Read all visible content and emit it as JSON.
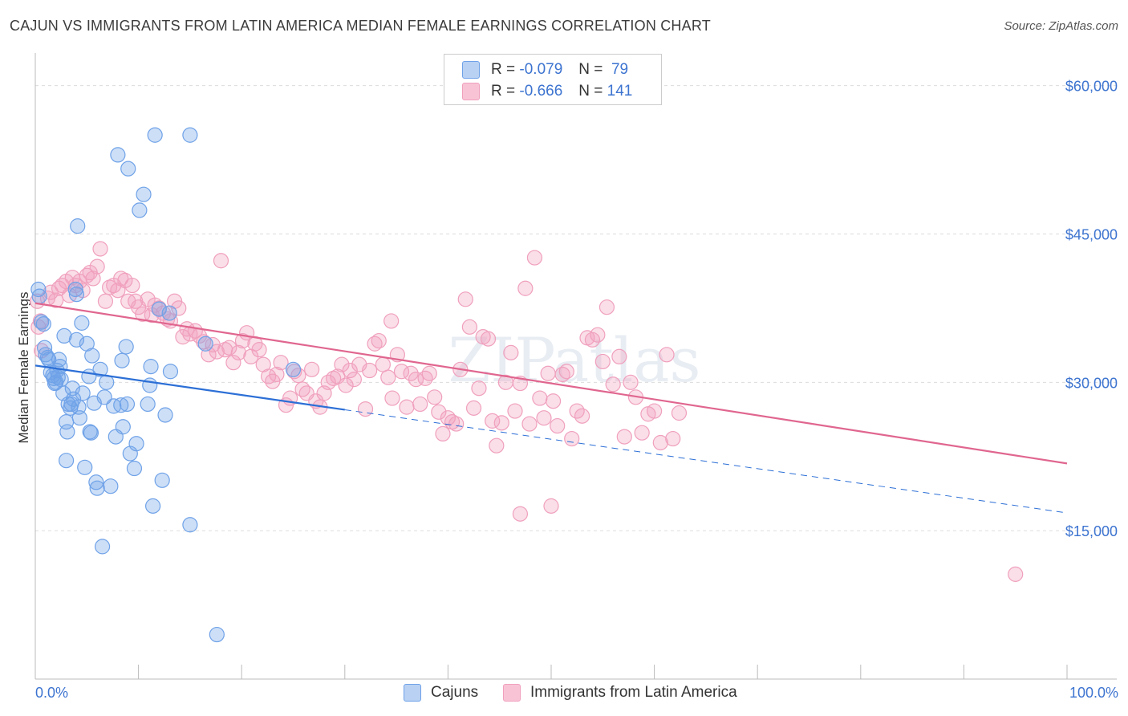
{
  "title": "CAJUN VS IMMIGRANTS FROM LATIN AMERICA MEDIAN FEMALE EARNINGS CORRELATION CHART",
  "source": "Source: ZipAtlas.com",
  "watermark": "ZIPatlas",
  "legend": {
    "rows": [
      {
        "r_label": "R =",
        "r_value": "-0.079",
        "n_label": "N =",
        "n_value": "79"
      },
      {
        "r_label": "R =",
        "r_value": "-0.666",
        "n_label": "N =",
        "n_value": "141"
      }
    ]
  },
  "bottom_legend": {
    "series0": "Cajuns",
    "series1": "Immigrants from Latin America"
  },
  "colors": {
    "blue": "#6fa2e8",
    "blue_line": "#2c6fd6",
    "pink": "#f0a0bd",
    "pink_line": "#e0668f",
    "axis_text": "#3d74d0"
  },
  "chart_data": {
    "type": "scatter",
    "ylabel": "Median Female Earnings",
    "xlim": [
      0,
      100
    ],
    "ylim": [
      0,
      62000
    ],
    "x_tick_labels": [
      "0.0%",
      "100.0%"
    ],
    "y_ticks": [
      15000,
      30000,
      45000,
      60000
    ],
    "y_tick_labels": [
      "$15,000",
      "$30,000",
      "$45,000",
      "$60,000"
    ],
    "grid": true,
    "series": [
      {
        "name": "Cajuns",
        "trend": {
          "x_start": 0,
          "y_start": 31700,
          "x_solid_end": 30,
          "x_end": 100,
          "y_end": 16800
        },
        "points": [
          [
            0.3,
            39400
          ],
          [
            0.4,
            38700
          ],
          [
            0.6,
            36100
          ],
          [
            0.8,
            35900
          ],
          [
            0.9,
            33500
          ],
          [
            1.0,
            32800
          ],
          [
            1.2,
            32500
          ],
          [
            1.3,
            32300
          ],
          [
            1.5,
            31000
          ],
          [
            1.7,
            30700
          ],
          [
            1.8,
            30400
          ],
          [
            1.9,
            29900
          ],
          [
            2.0,
            30000
          ],
          [
            2.1,
            31200
          ],
          [
            2.2,
            30500
          ],
          [
            2.3,
            32300
          ],
          [
            2.4,
            31600
          ],
          [
            2.5,
            30300
          ],
          [
            2.7,
            28900
          ],
          [
            2.8,
            34700
          ],
          [
            3.0,
            22100
          ],
          [
            3.0,
            26000
          ],
          [
            3.1,
            25000
          ],
          [
            3.2,
            27800
          ],
          [
            3.4,
            27400
          ],
          [
            3.5,
            27800
          ],
          [
            3.6,
            29400
          ],
          [
            3.7,
            28300
          ],
          [
            3.9,
            39400
          ],
          [
            4.0,
            34300
          ],
          [
            4.1,
            45800
          ],
          [
            4.2,
            27500
          ],
          [
            4.3,
            26400
          ],
          [
            4.5,
            36000
          ],
          [
            4.6,
            28900
          ],
          [
            4.8,
            21400
          ],
          [
            5.0,
            33900
          ],
          [
            5.2,
            30600
          ],
          [
            5.3,
            25000
          ],
          [
            5.4,
            24900
          ],
          [
            5.5,
            32700
          ],
          [
            5.7,
            27900
          ],
          [
            5.9,
            19900
          ],
          [
            6.0,
            19300
          ],
          [
            6.3,
            31300
          ],
          [
            6.5,
            13400
          ],
          [
            6.7,
            28500
          ],
          [
            6.9,
            30000
          ],
          [
            7.3,
            19500
          ],
          [
            7.6,
            27600
          ],
          [
            7.8,
            24500
          ],
          [
            8.0,
            53000
          ],
          [
            8.3,
            27700
          ],
          [
            8.4,
            32200
          ],
          [
            8.5,
            25500
          ],
          [
            8.8,
            33600
          ],
          [
            8.9,
            27800
          ],
          [
            9.0,
            51600
          ],
          [
            9.2,
            22800
          ],
          [
            9.6,
            21300
          ],
          [
            9.8,
            23800
          ],
          [
            10.1,
            47400
          ],
          [
            10.5,
            49000
          ],
          [
            10.9,
            27800
          ],
          [
            11.1,
            29700
          ],
          [
            11.2,
            31600
          ],
          [
            11.4,
            17500
          ],
          [
            11.6,
            55000
          ],
          [
            12.3,
            20100
          ],
          [
            12.6,
            26700
          ],
          [
            13.1,
            31100
          ],
          [
            15.0,
            55000
          ],
          [
            15.0,
            15600
          ],
          [
            16.5,
            33900
          ],
          [
            17.6,
            4500
          ],
          [
            12.0,
            37400
          ],
          [
            13.0,
            37000
          ],
          [
            25.0,
            31300
          ],
          [
            4.0,
            38900
          ]
        ]
      },
      {
        "name": "Immigrants from Latin America",
        "trend": {
          "x_start": 0,
          "y_start": 38000,
          "x_end": 100,
          "y_end": 21800
        },
        "points": [
          [
            0.2,
            38200
          ],
          [
            0.3,
            35600
          ],
          [
            0.5,
            36200
          ],
          [
            0.6,
            33200
          ],
          [
            1.2,
            38500
          ],
          [
            1.5,
            39100
          ],
          [
            2.0,
            38300
          ],
          [
            2.3,
            39500
          ],
          [
            2.6,
            39800
          ],
          [
            3.0,
            40200
          ],
          [
            3.3,
            38800
          ],
          [
            3.6,
            40600
          ],
          [
            3.9,
            39800
          ],
          [
            4.3,
            40200
          ],
          [
            4.6,
            39300
          ],
          [
            5.0,
            40800
          ],
          [
            5.3,
            41100
          ],
          [
            5.6,
            40500
          ],
          [
            6.0,
            41700
          ],
          [
            6.3,
            43500
          ],
          [
            6.8,
            38200
          ],
          [
            7.2,
            39600
          ],
          [
            7.6,
            39800
          ],
          [
            8.0,
            39300
          ],
          [
            8.3,
            40500
          ],
          [
            8.7,
            40300
          ],
          [
            9.0,
            38200
          ],
          [
            9.4,
            39800
          ],
          [
            9.7,
            38200
          ],
          [
            10.0,
            37600
          ],
          [
            10.4,
            36900
          ],
          [
            10.9,
            38400
          ],
          [
            11.3,
            36800
          ],
          [
            11.6,
            37800
          ],
          [
            12.0,
            37500
          ],
          [
            12.4,
            37000
          ],
          [
            12.8,
            36400
          ],
          [
            13.1,
            36200
          ],
          [
            13.5,
            38200
          ],
          [
            13.9,
            37500
          ],
          [
            14.3,
            34600
          ],
          [
            14.7,
            35400
          ],
          [
            15.0,
            34900
          ],
          [
            15.5,
            35200
          ],
          [
            15.9,
            34700
          ],
          [
            16.3,
            34100
          ],
          [
            16.8,
            32800
          ],
          [
            17.2,
            33800
          ],
          [
            17.6,
            33100
          ],
          [
            18.0,
            42300
          ],
          [
            18.4,
            33300
          ],
          [
            18.8,
            33500
          ],
          [
            19.2,
            32000
          ],
          [
            19.7,
            33000
          ],
          [
            20.1,
            34200
          ],
          [
            20.5,
            35000
          ],
          [
            20.9,
            32600
          ],
          [
            21.3,
            33900
          ],
          [
            21.7,
            33300
          ],
          [
            22.1,
            31800
          ],
          [
            22.6,
            30600
          ],
          [
            23.0,
            30100
          ],
          [
            23.4,
            30800
          ],
          [
            23.8,
            32000
          ],
          [
            24.3,
            27700
          ],
          [
            24.7,
            28400
          ],
          [
            25.1,
            31100
          ],
          [
            25.5,
            30700
          ],
          [
            25.9,
            29300
          ],
          [
            26.3,
            28900
          ],
          [
            26.8,
            31300
          ],
          [
            27.2,
            28100
          ],
          [
            27.6,
            27500
          ],
          [
            28.0,
            28900
          ],
          [
            28.4,
            30000
          ],
          [
            28.9,
            30400
          ],
          [
            29.3,
            30600
          ],
          [
            29.7,
            31800
          ],
          [
            30.1,
            29700
          ],
          [
            30.5,
            31200
          ],
          [
            30.9,
            30300
          ],
          [
            31.4,
            31800
          ],
          [
            32.0,
            27300
          ],
          [
            32.4,
            31200
          ],
          [
            32.9,
            33900
          ],
          [
            33.3,
            34200
          ],
          [
            33.7,
            31800
          ],
          [
            34.2,
            30500
          ],
          [
            34.6,
            28400
          ],
          [
            35.1,
            32800
          ],
          [
            35.5,
            31100
          ],
          [
            36.0,
            27500
          ],
          [
            36.4,
            30900
          ],
          [
            36.9,
            30300
          ],
          [
            37.3,
            27800
          ],
          [
            37.8,
            30400
          ],
          [
            38.2,
            30900
          ],
          [
            38.7,
            28500
          ],
          [
            39.1,
            27000
          ],
          [
            39.5,
            24800
          ],
          [
            40.0,
            26400
          ],
          [
            40.4,
            26000
          ],
          [
            40.8,
            25800
          ],
          [
            41.2,
            31300
          ],
          [
            41.7,
            38400
          ],
          [
            42.1,
            35600
          ],
          [
            42.5,
            27400
          ],
          [
            43.0,
            29400
          ],
          [
            43.4,
            34600
          ],
          [
            43.9,
            34400
          ],
          [
            44.3,
            26100
          ],
          [
            44.7,
            23600
          ],
          [
            45.2,
            25900
          ],
          [
            45.6,
            30000
          ],
          [
            46.1,
            33000
          ],
          [
            46.5,
            27100
          ],
          [
            47.0,
            29900
          ],
          [
            47.5,
            39500
          ],
          [
            47.9,
            25800
          ],
          [
            48.4,
            42600
          ],
          [
            48.9,
            28400
          ],
          [
            49.3,
            26400
          ],
          [
            49.7,
            30900
          ],
          [
            50.2,
            28100
          ],
          [
            50.6,
            25600
          ],
          [
            51.1,
            30800
          ],
          [
            51.5,
            31100
          ],
          [
            52.0,
            24300
          ],
          [
            52.5,
            27100
          ],
          [
            53.0,
            26600
          ],
          [
            53.5,
            34500
          ],
          [
            54.0,
            34300
          ],
          [
            54.5,
            34800
          ],
          [
            55.0,
            32100
          ],
          [
            55.4,
            37600
          ],
          [
            56.0,
            29800
          ],
          [
            56.6,
            32600
          ],
          [
            57.1,
            24500
          ],
          [
            57.7,
            30000
          ],
          [
            58.2,
            28500
          ],
          [
            58.8,
            24900
          ],
          [
            59.4,
            26800
          ],
          [
            60.0,
            27100
          ],
          [
            60.6,
            23900
          ],
          [
            61.2,
            32800
          ],
          [
            61.8,
            24300
          ],
          [
            62.4,
            26900
          ],
          [
            95.0,
            10600
          ],
          [
            47.0,
            16700
          ],
          [
            50.0,
            17500
          ],
          [
            34.5,
            36200
          ]
        ]
      }
    ]
  }
}
